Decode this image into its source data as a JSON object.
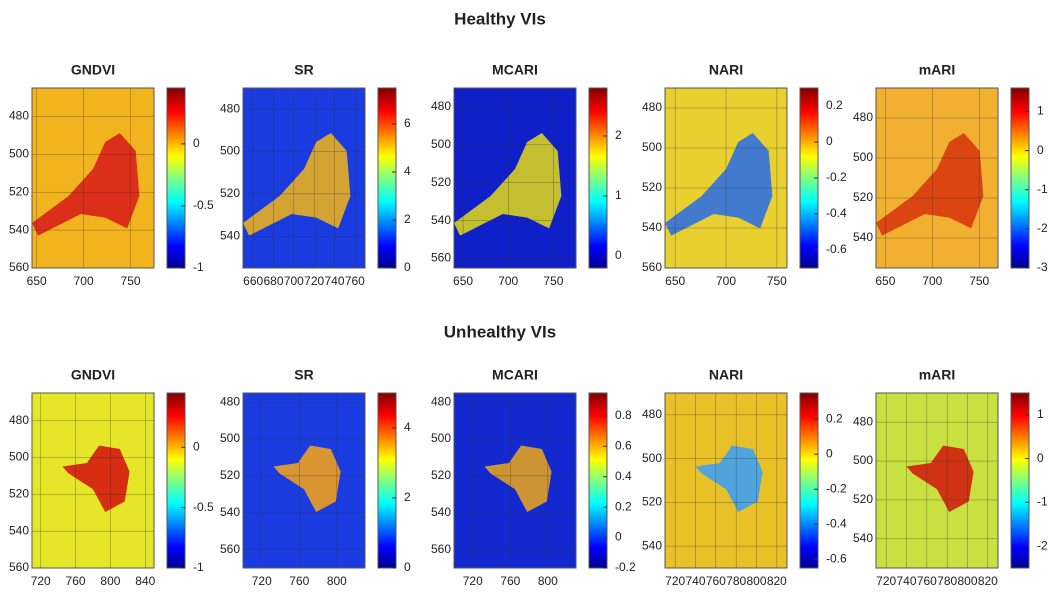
{
  "headings": [
    "Healthy VIs",
    "Unhealthy VIs"
  ],
  "chart_data": [
    {
      "type": "heatmap",
      "title": "GNDVI",
      "xlim": [
        645,
        775
      ],
      "xticks": [
        650,
        700,
        750
      ],
      "ylim": [
        560,
        465
      ],
      "yticks": [
        480,
        500,
        520,
        540,
        560
      ],
      "clim": [
        -1,
        0.45
      ],
      "cticks": [
        -1,
        -0.5,
        0
      ],
      "background": "#f2b41e",
      "color": "#d8201a",
      "grid": true
    },
    {
      "type": "heatmap",
      "title": "SR",
      "xlim": [
        650,
        770
      ],
      "xticks": [
        660,
        680,
        700,
        720,
        740,
        760
      ],
      "ylim": [
        555,
        470
      ],
      "yticks": [
        480,
        500,
        520,
        540
      ],
      "clim": [
        0,
        7.5
      ],
      "cticks": [
        0,
        2,
        4,
        6
      ],
      "background": "#1a3be0",
      "color": "#e8b020",
      "grid": true
    },
    {
      "type": "heatmap",
      "title": "MCARI",
      "xlim": [
        640,
        775
      ],
      "xticks": [
        650,
        700,
        750
      ],
      "ylim": [
        565,
        470
      ],
      "yticks": [
        480,
        500,
        520,
        540,
        560
      ],
      "clim": [
        -0.2,
        2.8
      ],
      "cticks": [
        0,
        1,
        2
      ],
      "background": "#1020c8",
      "color": "#d8d020",
      "grid": true
    },
    {
      "type": "heatmap",
      "title": "NARI",
      "xlim": [
        640,
        760
      ],
      "xticks": [
        650,
        700,
        750
      ],
      "ylim": [
        560,
        470
      ],
      "yticks": [
        480,
        500,
        520,
        540,
        560
      ],
      "clim": [
        -0.7,
        0.3
      ],
      "cticks": [
        -0.6,
        -0.4,
        -0.2,
        0,
        0.2
      ],
      "background": "#e8d030",
      "color": "#3070e0",
      "grid": true
    },
    {
      "type": "heatmap",
      "title": "mARI",
      "xlim": [
        640,
        770
      ],
      "xticks": [
        650,
        700,
        750
      ],
      "ylim": [
        555,
        465
      ],
      "yticks": [
        480,
        500,
        520,
        540
      ],
      "clim": [
        -3,
        1.6
      ],
      "cticks": [
        -3,
        -2,
        -1,
        0,
        1
      ],
      "background": "#f2b030",
      "color": "#d83a10",
      "grid": true
    },
    {
      "type": "heatmap",
      "title": "GNDVI",
      "xlim": [
        710,
        850
      ],
      "xticks": [
        720,
        760,
        800,
        840
      ],
      "ylim": [
        560,
        465
      ],
      "yticks": [
        480,
        500,
        520,
        540,
        560
      ],
      "clim": [
        -1,
        0.45
      ],
      "cticks": [
        -1,
        -0.5,
        0
      ],
      "background": "#e6e628",
      "color": "#d41a10",
      "grid": true
    },
    {
      "type": "heatmap",
      "title": "SR",
      "xlim": [
        700,
        830
      ],
      "xticks": [
        720,
        760,
        800
      ],
      "ylim": [
        570,
        475
      ],
      "yticks": [
        480,
        500,
        520,
        540,
        560
      ],
      "clim": [
        0,
        5
      ],
      "cticks": [
        0,
        2,
        4
      ],
      "background": "#1a3be0",
      "color": "#f0a020",
      "grid": true
    },
    {
      "type": "heatmap",
      "title": "MCARI",
      "xlim": [
        700,
        830
      ],
      "xticks": [
        720,
        760,
        800
      ],
      "ylim": [
        570,
        475
      ],
      "yticks": [
        480,
        500,
        520,
        540,
        560
      ],
      "clim": [
        -0.2,
        0.95
      ],
      "cticks": [
        -0.2,
        0,
        0.2,
        0.4,
        0.6,
        0.8
      ],
      "background": "#1428d0",
      "color": "#e0a020",
      "grid": true
    },
    {
      "type": "heatmap",
      "title": "NARI",
      "xlim": [
        710,
        830
      ],
      "xticks": [
        720,
        740,
        760,
        780,
        800,
        820
      ],
      "ylim": [
        550,
        470
      ],
      "yticks": [
        480,
        500,
        520,
        540
      ],
      "clim": [
        -0.65,
        0.35
      ],
      "cticks": [
        -0.6,
        -0.4,
        -0.2,
        0,
        0.2
      ],
      "background": "#e8c028",
      "color": "#40a0f0",
      "grid": true
    },
    {
      "type": "heatmap",
      "title": "mARI",
      "xlim": [
        710,
        830
      ],
      "xticks": [
        720,
        740,
        760,
        780,
        800,
        820
      ],
      "ylim": [
        555,
        465
      ],
      "yticks": [
        480,
        500,
        520,
        540
      ],
      "clim": [
        -2.5,
        1.5
      ],
      "cticks": [
        -2,
        -1,
        0,
        1
      ],
      "background": "#c8e040",
      "color": "#d02010",
      "grid": true
    }
  ]
}
